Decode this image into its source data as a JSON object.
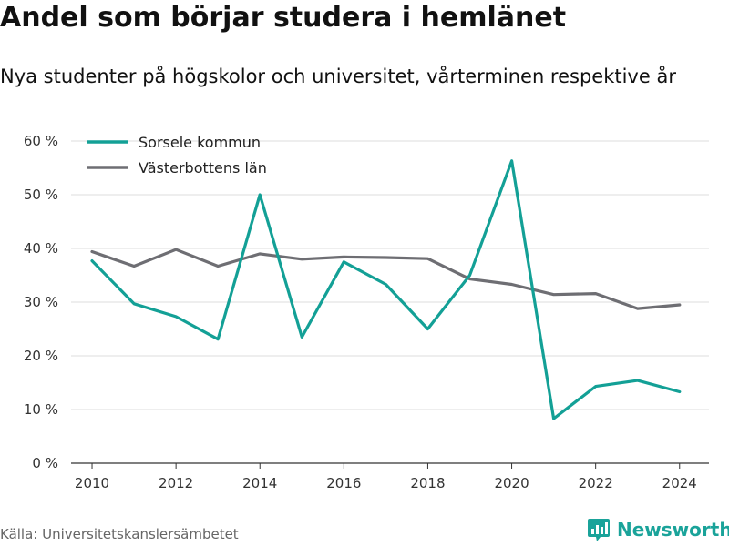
{
  "title": "Andel som börjar studera i hemlänet",
  "subtitle": "Nya studenter på högskolor och universitet, vårterminen respektive år",
  "source": "Källa: Universitetskanslersämbetet",
  "brand": {
    "name": "Newsworthy",
    "icon": "newsworthy-logo-icon",
    "color": "#1aa39a"
  },
  "chart_data": {
    "type": "line",
    "x": [
      2010,
      2011,
      2012,
      2013,
      2014,
      2015,
      2016,
      2017,
      2018,
      2019,
      2020,
      2021,
      2022,
      2023,
      2024
    ],
    "series": [
      {
        "name": "Sorsele kommun",
        "color": "#13a096",
        "values": [
          37.7,
          29.7,
          27.3,
          23.1,
          50.0,
          23.5,
          37.5,
          33.3,
          25.0,
          35.0,
          56.3,
          8.3,
          14.3,
          15.4,
          13.3
        ]
      },
      {
        "name": "Västerbottens län",
        "color": "#6e6e73",
        "values": [
          39.4,
          36.7,
          39.8,
          36.7,
          39.0,
          38.0,
          38.4,
          38.3,
          38.1,
          34.3,
          33.3,
          31.4,
          31.6,
          28.8,
          29.5
        ]
      }
    ],
    "xticks": [
      2010,
      2012,
      2014,
      2016,
      2018,
      2020,
      2022,
      2024
    ],
    "yticks": [
      0,
      10,
      20,
      30,
      40,
      50,
      60
    ],
    "ytick_labels": [
      "0 %",
      "10 %",
      "20 %",
      "30 %",
      "40 %",
      "50 %",
      "60 %"
    ],
    "xlim": [
      2009.5,
      2024.7
    ],
    "ylim": [
      0,
      60
    ],
    "grid": true,
    "legend_position": "top-left"
  }
}
